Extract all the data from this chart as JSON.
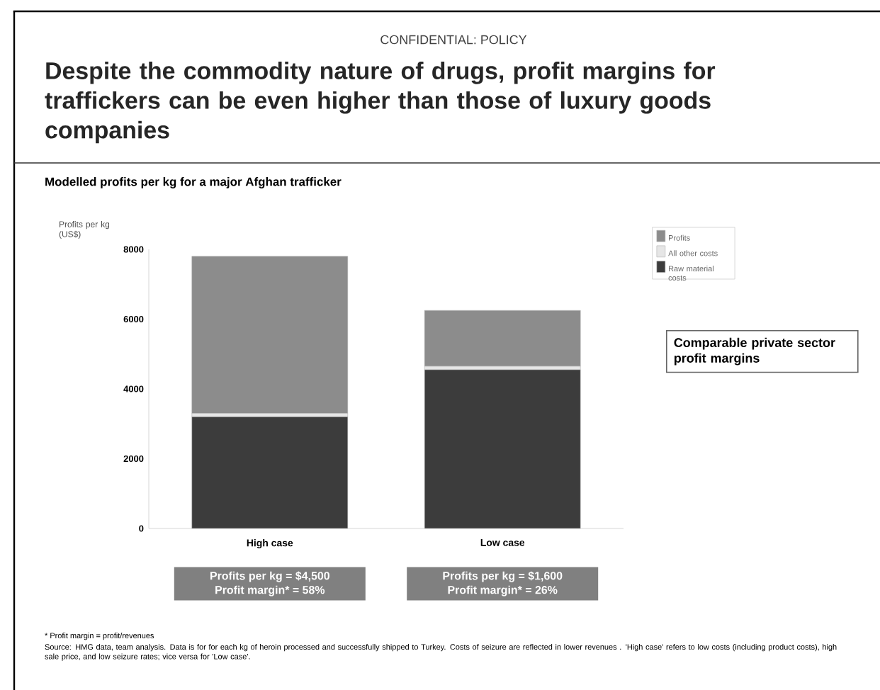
{
  "chart_data": {
    "type": "bar",
    "stacked": true,
    "title": "Despite the commodity nature of drugs, profit margins for traffickers can be even higher than those of luxury goods companies",
    "subtitle": "Modelled profits per kg for a major Afghan trafficker",
    "ylabel": "Profits per kg (US$)",
    "categories": [
      "High case",
      "Low case"
    ],
    "series": [
      {
        "name": "Raw material costs",
        "color": "#3c3c3c",
        "values": [
          3200,
          4550
        ]
      },
      {
        "name": "All other costs",
        "color": "#e6e6e6",
        "values": [
          100,
          100
        ]
      },
      {
        "name": "Profits",
        "color": "#8c8c8c",
        "values": [
          4500,
          1600
        ]
      }
    ],
    "ylim": [
      0,
      8000
    ],
    "yticks": [
      0,
      2000,
      4000,
      6000,
      8000
    ],
    "grid": false,
    "legend": "top right",
    "annotations": [
      "CONFIDENTIAL: POLICY",
      "Profits per kg =  $4,500",
      "Profit margin* = 58%",
      "Profits per kg =  $1,600",
      "Profit margin* = 26%",
      "Comparable private sector profit margins",
      "* Profit margin = profit/revenues",
      "Source: HMG data, team analysis. Data is for for each kg of heroin processed and successfully shipped to Turkey. Costs of seizure are reflected in lower revenues . 'High case' refers to low costs (including product costs), high sale price, and low seizure rates; vice versa for 'Low case'."
    ]
  }
}
